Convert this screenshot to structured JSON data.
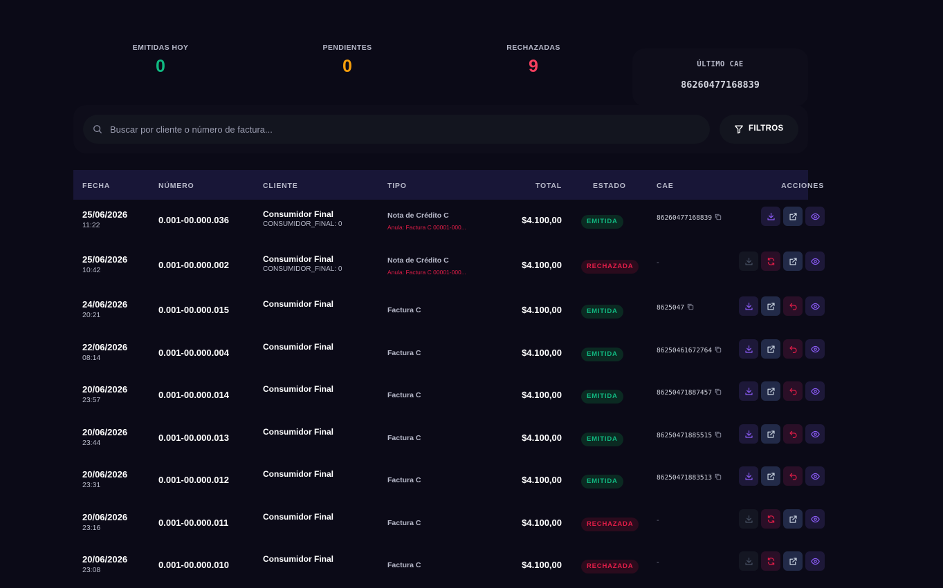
{
  "stats": [
    {
      "label": "EMITIDAS HOY",
      "value": "0",
      "color": "#10b981"
    },
    {
      "label": "PENDIENTES",
      "value": "0",
      "color": "#f59e0b"
    },
    {
      "label": "RECHAZADAS",
      "value": "9",
      "color": "#f43f5e"
    },
    {
      "label": "ÚLTIMO CAE",
      "value": "86260477168839",
      "color": "#ffffff"
    }
  ],
  "search": {
    "placeholder": "Buscar por cliente o número de factura...",
    "icon": "search-icon"
  },
  "filters": {
    "label": "FILTROS",
    "icon": "filter-icon"
  },
  "table": {
    "headers": {
      "fecha": "FECHA",
      "numero": "NÚMERO",
      "cliente": "CLIENTE",
      "tipo": "TIPO",
      "total": "TOTAL",
      "estado": "ESTADO",
      "cae": "CAE",
      "acciones": "ACCIONES"
    },
    "rows": [
      {
        "date": "25/06/2026",
        "time": "11:22",
        "number": "0.001-00.000.036",
        "client": "Consumidor Final",
        "client_sub": "CONSUMIDOR_FINAL: 0",
        "type": "Nota de Crédito C",
        "anula": "Anula: Factura C 00001-000...",
        "total": "$4.100,00",
        "status": "EMITIDA",
        "cae": "86260477168839"
      },
      {
        "date": "25/06/2026",
        "time": "10:42",
        "number": "0.001-00.000.002",
        "client": "Consumidor Final",
        "client_sub": "CONSUMIDOR_FINAL: 0",
        "type": "Nota de Crédito C",
        "anula": "Anula: Factura C 00001-000...",
        "total": "$4.100,00",
        "status": "RECHAZADA",
        "cae": "-"
      },
      {
        "date": "24/06/2026",
        "time": "20:21",
        "number": "0.001-00.000.015",
        "client": "Consumidor Final",
        "client_sub": "",
        "type": "Factura C",
        "anula": "",
        "total": "$4.100,00",
        "status": "EMITIDA",
        "cae": "8625047"
      },
      {
        "date": "22/06/2026",
        "time": "08:14",
        "number": "0.001-00.000.004",
        "client": "Consumidor Final",
        "client_sub": "",
        "type": "Factura C",
        "anula": "",
        "total": "$4.100,00",
        "status": "EMITIDA",
        "cae": "86250461672764"
      },
      {
        "date": "20/06/2026",
        "time": "23:57",
        "number": "0.001-00.000.014",
        "client": "Consumidor Final",
        "client_sub": "",
        "type": "Factura C",
        "anula": "",
        "total": "$4.100,00",
        "status": "EMITIDA",
        "cae": "86250471887457"
      },
      {
        "date": "20/06/2026",
        "time": "23:44",
        "number": "0.001-00.000.013",
        "client": "Consumidor Final",
        "client_sub": "",
        "type": "Factura C",
        "anula": "",
        "total": "$4.100,00",
        "status": "EMITIDA",
        "cae": "86250471885515"
      },
      {
        "date": "20/06/2026",
        "time": "23:31",
        "number": "0.001-00.000.012",
        "client": "Consumidor Final",
        "client_sub": "",
        "type": "Factura C",
        "anula": "",
        "total": "$4.100,00",
        "status": "EMITIDA",
        "cae": "86250471883513"
      },
      {
        "date": "20/06/2026",
        "time": "23:16",
        "number": "0.001-00.000.011",
        "client": "Consumidor Final",
        "client_sub": "",
        "type": "Factura C",
        "anula": "",
        "total": "$4.100,00",
        "status": "RECHAZADA",
        "cae": "-"
      },
      {
        "date": "20/06/2026",
        "time": "23:08",
        "number": "0.001-00.000.010",
        "client": "Consumidor Final",
        "client_sub": "",
        "type": "Factura C",
        "anula": "",
        "total": "$4.100,00",
        "status": "RECHAZADA",
        "cae": "-"
      }
    ]
  },
  "colors": {
    "emitida": "#10b981",
    "rechazada": "#e11d48",
    "accent": "#8b5cf6"
  }
}
